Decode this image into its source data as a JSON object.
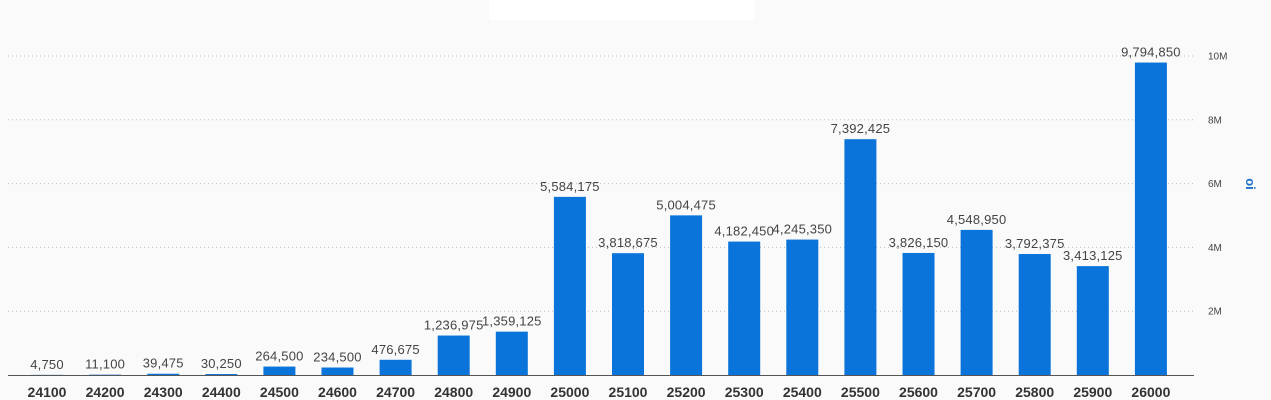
{
  "chart_data": {
    "type": "bar",
    "categories": [
      "24100",
      "24200",
      "24300",
      "24400",
      "24500",
      "24600",
      "24700",
      "24800",
      "24900",
      "25000",
      "25100",
      "25200",
      "25300",
      "25400",
      "25500",
      "25600",
      "25700",
      "25800",
      "25900",
      "26000"
    ],
    "values": [
      4750,
      11100,
      39475,
      30250,
      264500,
      234500,
      476675,
      1236975,
      1359125,
      5584175,
      3818675,
      5004475,
      4182450,
      4245350,
      7392425,
      3826150,
      4548950,
      3792375,
      3413125,
      9794850
    ],
    "data_labels": [
      "4,750",
      "11,100",
      "39,475",
      "30,250",
      "264,500",
      "234,500",
      "476,675",
      "1,236,975",
      "1,359,125",
      "5,584,175",
      "3,818,675",
      "5,004,475",
      "4,182,450",
      "4,245,350",
      "7,392,425",
      "3,826,150",
      "4,548,950",
      "3,792,375",
      "3,413,125",
      "9,794,850"
    ],
    "title": "",
    "xlabel": "",
    "ylabel": "oi",
    "ylim": [
      0,
      10000000
    ],
    "y_ticks": [
      2000000,
      4000000,
      6000000,
      8000000,
      10000000
    ],
    "y_tick_labels": [
      "2M",
      "4M",
      "6M",
      "8M",
      "10M"
    ],
    "y_axis_position": "right",
    "grid": true,
    "bar_color": "#0a74da"
  }
}
